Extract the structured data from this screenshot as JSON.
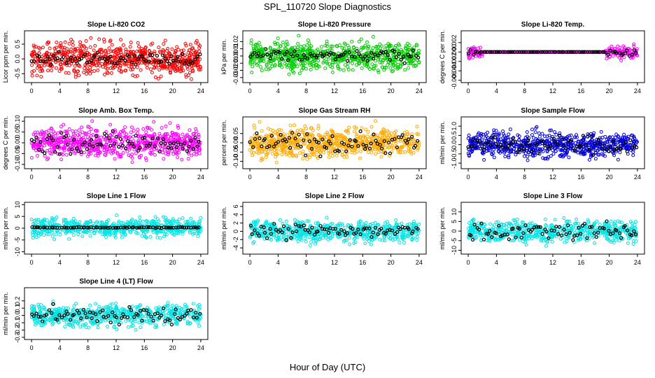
{
  "figure": {
    "title": "SPL_110720  Slope Diagnostics",
    "xlabel": "Hour of Day (UTC)"
  },
  "chart_data": [
    {
      "type": "scatter",
      "title": "Slope Li-820 CO2",
      "ylabel": "Licor ppm per min.",
      "color": "#ff0000",
      "xlim": [
        -1,
        25
      ],
      "xticks": [
        0,
        4,
        8,
        12,
        16,
        20,
        24
      ],
      "ylim": [
        -0.8,
        0.95
      ],
      "yticks": [
        -0.5,
        0,
        0.5
      ],
      "yticklabels": [
        "-0.5",
        "0.0",
        "0.5"
      ],
      "spread": 0.55,
      "overlay_spread": 0.2,
      "baseline": 0,
      "n": 700
    },
    {
      "type": "scatter",
      "title": "Slope Li-820 Pressure",
      "ylabel": "kPa per min.",
      "color": "#00cc00",
      "xlim": [
        -1,
        25
      ],
      "xticks": [
        0,
        4,
        8,
        12,
        16,
        20,
        24
      ],
      "ylim": [
        -0.037,
        0.035
      ],
      "yticks": [
        -0.03,
        -0.02,
        -0.01,
        0,
        0.01,
        0.02
      ],
      "yticklabels": [
        "-0.03",
        "-0.02",
        "-0.01",
        "0.00",
        "0.01",
        "0.02"
      ],
      "spread": 0.02,
      "overlay_spread": 0.008,
      "baseline": 0,
      "n": 700
    },
    {
      "type": "scatter",
      "title": "Slope Li-820 Temp.",
      "ylabel": "degrees C per min.",
      "color": "#ff00ff",
      "xlim": [
        -1,
        25
      ],
      "xticks": [
        0,
        4,
        8,
        12,
        16,
        20,
        24
      ],
      "ylim": [
        -0.0065,
        0.0045
      ],
      "yticks": [
        -0.006,
        -0.004,
        -0.002,
        0,
        0.002
      ],
      "yticklabels": [
        "-0.006",
        "-0.004",
        "-0.002",
        "0.000",
        "0.002"
      ],
      "spread": 0.0015,
      "overlay_spread": 0.0008,
      "baseline": 0,
      "n": 500,
      "flat_range": [
        2,
        19.5
      ]
    },
    {
      "type": "scatter",
      "title": "Slope Amb. Box Temp.",
      "ylabel": "degrees C per min.",
      "color": "#ff00ff",
      "xlim": [
        -1,
        25
      ],
      "xticks": [
        0,
        4,
        8,
        12,
        16,
        20,
        24
      ],
      "ylim": [
        -0.12,
        0.12
      ],
      "yticks": [
        -0.1,
        -0.05,
        0,
        0.05,
        0.1
      ],
      "yticklabels": [
        "-0.10",
        "-0.05",
        "0.00",
        "0.05",
        "0.10"
      ],
      "spread": 0.07,
      "overlay_spread": 0.05,
      "baseline": 0,
      "n": 700
    },
    {
      "type": "scatter",
      "title": "Slope Gas Stream RH",
      "ylabel": "percent per min.",
      "color": "#ffaa00",
      "xlim": [
        -1,
        25
      ],
      "xticks": [
        0,
        4,
        8,
        12,
        16,
        20,
        24
      ],
      "ylim": [
        -0.14,
        0.14
      ],
      "yticks": [
        -0.1,
        -0.05,
        0,
        0.05
      ],
      "yticklabels": [
        "-0.10",
        "-0.05",
        "0.00",
        "0.05"
      ],
      "spread": 0.08,
      "overlay_spread": 0.06,
      "baseline": 0,
      "n": 700
    },
    {
      "type": "scatter",
      "title": "Slope Sample Flow",
      "ylabel": "ml/min per min.",
      "color": "#0000dd",
      "xlim": [
        -1,
        25
      ],
      "xticks": [
        0,
        4,
        8,
        12,
        16,
        20,
        24
      ],
      "ylim": [
        -1.3,
        1.5
      ],
      "yticks": [
        -1,
        -0.5,
        0,
        0.5,
        1
      ],
      "yticklabels": [
        "-1.0",
        "-0.5",
        "0.0",
        "0.5",
        "1.0"
      ],
      "spread": 0.7,
      "overlay_spread": 0.5,
      "baseline": 0,
      "n": 700
    },
    {
      "type": "scatter",
      "title": "Slope Line 1 Flow",
      "ylabel": "ml/min per min.",
      "color": "#00e5e5",
      "xlim": [
        -1,
        25
      ],
      "xticks": [
        0,
        4,
        8,
        12,
        16,
        20,
        24
      ],
      "ylim": [
        -11,
        11
      ],
      "yticks": [
        -10,
        -5,
        0,
        5,
        10
      ],
      "yticklabels": [
        "-10",
        "-5",
        "0",
        "5",
        "10"
      ],
      "spread": 4,
      "overlay_spread": 0.2,
      "baseline": 0.3,
      "n": 600
    },
    {
      "type": "scatter",
      "title": "Slope Line 2 Flow",
      "ylabel": "ml/min per min.",
      "color": "#00e5e5",
      "xlim": [
        -1,
        25
      ],
      "xticks": [
        0,
        4,
        8,
        12,
        16,
        20,
        24
      ],
      "ylim": [
        -5.5,
        7
      ],
      "yticks": [
        -4,
        -2,
        0,
        2,
        4,
        6
      ],
      "yticklabels": [
        "-4",
        "-2",
        "0",
        "2",
        "4",
        "6"
      ],
      "spread": 2.5,
      "overlay_spread": 2,
      "baseline": 0,
      "n": 600
    },
    {
      "type": "scatter",
      "title": "Slope Line 3 Flow",
      "ylabel": "ml/min per min.",
      "color": "#00e5e5",
      "xlim": [
        -1,
        25
      ],
      "xticks": [
        0,
        4,
        8,
        12,
        16,
        20,
        24
      ],
      "ylim": [
        -12,
        15
      ],
      "yticks": [
        -10,
        -5,
        0,
        5,
        10
      ],
      "yticklabels": [
        "-10",
        "-5",
        "0",
        "5",
        "10"
      ],
      "spread": 6,
      "overlay_spread": 5,
      "baseline": 0,
      "n": 600
    },
    {
      "type": "scatter",
      "title": "Slope Line 4 (LT) Flow",
      "ylabel": "ml/min per min.",
      "color": "#00e5e5",
      "xlim": [
        -1,
        25
      ],
      "xticks": [
        0,
        4,
        8,
        12,
        16,
        20,
        24
      ],
      "ylim": [
        -0.33,
        0.38
      ],
      "yticks": [
        -0.3,
        -0.2,
        -0.1,
        0,
        0.1,
        0.2
      ],
      "yticklabels": [
        "-0.3",
        "-0.2",
        "-0.1",
        "0.0",
        "0.1",
        "0.2"
      ],
      "spread": 0.15,
      "overlay_spread": 0.12,
      "baseline": 0,
      "n": 600
    }
  ]
}
